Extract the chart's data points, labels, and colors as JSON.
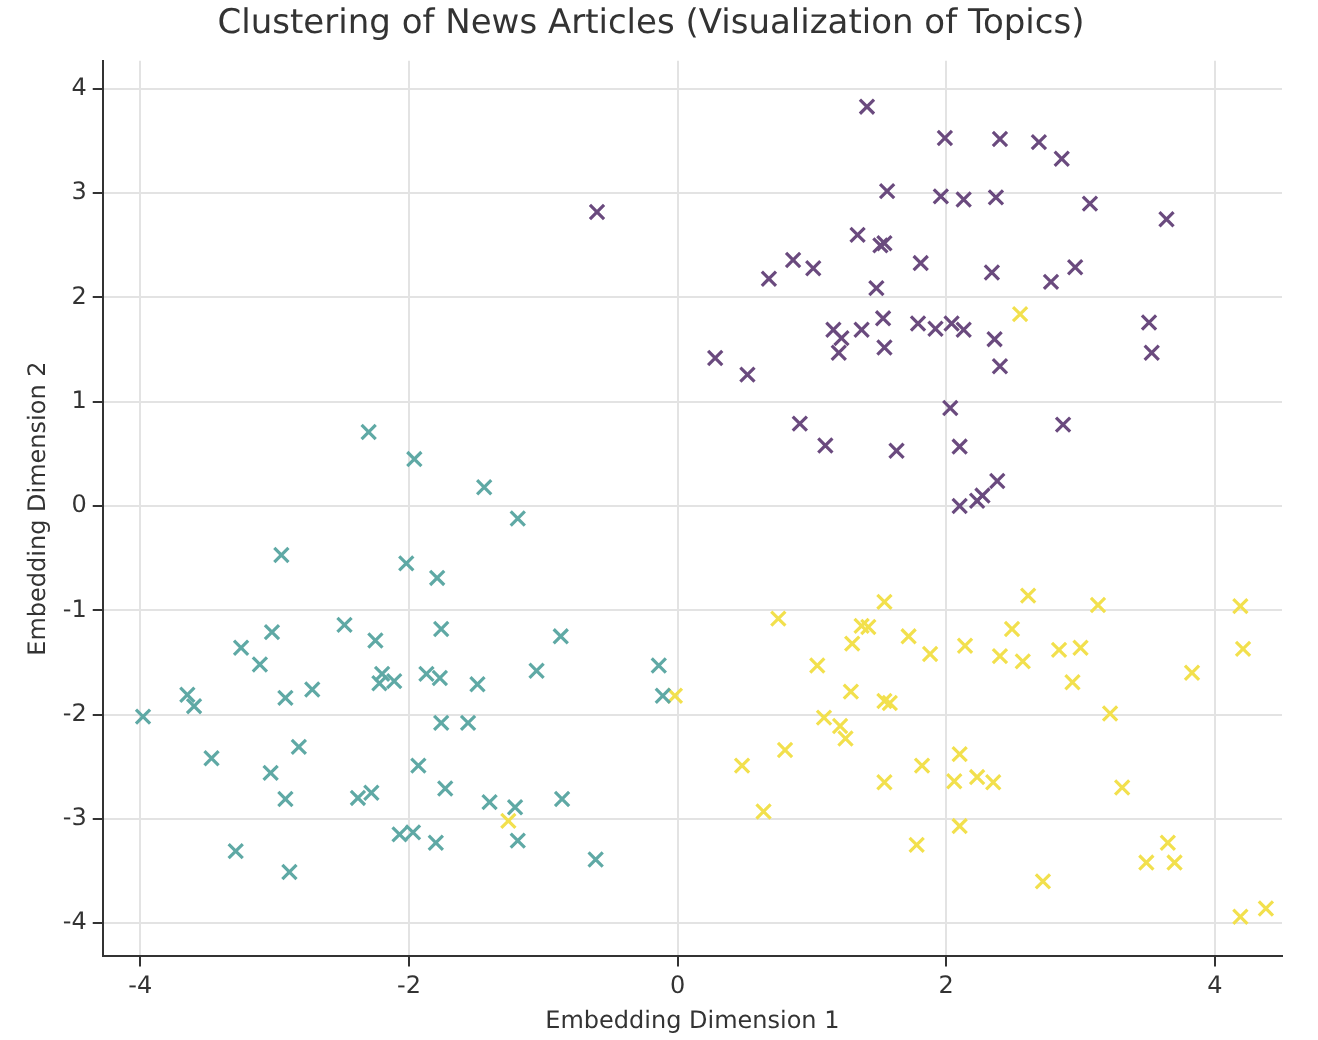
{
  "chart_data": {
    "type": "scatter",
    "title": "Clustering of News Articles (Visualization of Topics)",
    "xlabel": "Embedding Dimension 1",
    "ylabel": "Embedding Dimension 2",
    "xlim": [
      -4.28,
      4.5
    ],
    "ylim": [
      -4.32,
      4.27
    ],
    "xticks": [
      -4,
      -2,
      0,
      2,
      4
    ],
    "yticks": [
      -4,
      -3,
      -2,
      -1,
      0,
      1,
      2,
      3,
      4
    ],
    "grid": true,
    "legend": false,
    "marker": "cross",
    "series": [
      {
        "color": "#6a4a7e",
        "x": [
          1.41,
          1.99,
          2.4,
          2.69,
          2.86,
          1.56,
          1.96,
          2.13,
          2.37,
          3.07,
          3.64,
          1.34,
          1.51,
          1.54,
          0.86,
          1.01,
          0.68,
          1.81,
          2.34,
          2.96,
          2.78,
          1.48,
          1.16,
          1.22,
          1.37,
          1.53,
          1.54,
          1.2,
          1.79,
          1.92,
          2.04,
          2.13,
          2.36,
          2.4,
          3.51,
          3.53,
          0.28,
          0.52,
          2.03,
          2.87,
          0.91,
          1.1,
          1.63,
          2.1,
          2.38,
          2.1,
          2.23,
          2.27,
          -0.6
        ],
        "values": [
          3.83,
          3.53,
          3.52,
          3.49,
          3.33,
          3.02,
          2.97,
          2.94,
          2.96,
          2.9,
          2.75,
          2.6,
          2.5,
          2.52,
          2.36,
          2.28,
          2.18,
          2.33,
          2.24,
          2.29,
          2.15,
          2.09,
          1.69,
          1.61,
          1.69,
          1.8,
          1.52,
          1.47,
          1.75,
          1.7,
          1.75,
          1.69,
          1.6,
          1.34,
          1.76,
          1.47,
          1.42,
          1.26,
          0.94,
          0.78,
          0.79,
          0.58,
          0.53,
          0.57,
          0.24,
          0.0,
          0.05,
          0.1,
          2.82
        ]
      },
      {
        "color": "#5fa9a5",
        "x": [
          -2.3,
          -1.96,
          -1.44,
          -1.19,
          -2.95,
          -2.02,
          -1.79,
          -3.25,
          -3.02,
          -2.48,
          -2.25,
          -1.76,
          -0.87,
          -3.11,
          -3.65,
          -3.6,
          -3.98,
          -2.92,
          -2.72,
          -2.2,
          -2.22,
          -2.11,
          -1.87,
          -1.77,
          -1.49,
          -1.05,
          -0.14,
          -0.11,
          -1.76,
          -1.56,
          -3.47,
          -2.82,
          -3.03,
          -1.93,
          -2.92,
          -2.38,
          -2.28,
          -1.73,
          -1.4,
          -1.21,
          -0.86,
          -1.19,
          -2.07,
          -1.97,
          -1.8,
          -3.29,
          -2.89,
          -0.61
        ],
        "values": [
          0.71,
          0.45,
          0.18,
          -0.12,
          -0.47,
          -0.55,
          -0.69,
          -1.36,
          -1.21,
          -1.14,
          -1.29,
          -1.18,
          -1.25,
          -1.52,
          -1.81,
          -1.92,
          -2.02,
          -1.84,
          -1.76,
          -1.61,
          -1.7,
          -1.68,
          -1.61,
          -1.65,
          -1.71,
          -1.58,
          -1.53,
          -1.82,
          -2.08,
          -2.08,
          -2.42,
          -2.31,
          -2.56,
          -2.49,
          -2.81,
          -2.8,
          -2.75,
          -2.71,
          -2.84,
          -2.89,
          -2.81,
          -3.21,
          -3.15,
          -3.13,
          -3.23,
          -3.31,
          -3.51,
          -3.39
        ]
      },
      {
        "color": "#f2e04d",
        "x": [
          0.75,
          1.54,
          2.61,
          3.13,
          4.19,
          1.37,
          1.42,
          1.3,
          1.72,
          1.88,
          2.14,
          2.49,
          2.4,
          2.57,
          2.84,
          3.0,
          4.21,
          1.04,
          3.83,
          2.94,
          1.29,
          1.54,
          1.58,
          3.22,
          1.09,
          1.21,
          1.25,
          0.48,
          0.8,
          1.54,
          1.82,
          2.1,
          2.06,
          2.23,
          2.35,
          3.31,
          0.64,
          2.1,
          1.78,
          3.49,
          3.65,
          3.7,
          2.72,
          4.19,
          4.38,
          2.55,
          -0.02,
          -1.26
        ],
        "values": [
          -1.08,
          -0.92,
          -0.86,
          -0.95,
          -0.96,
          -1.15,
          -1.16,
          -1.32,
          -1.25,
          -1.42,
          -1.34,
          -1.18,
          -1.44,
          -1.49,
          -1.38,
          -1.36,
          -1.37,
          -1.53,
          -1.6,
          -1.69,
          -1.78,
          -1.87,
          -1.89,
          -1.99,
          -2.03,
          -2.11,
          -2.23,
          -2.49,
          -2.34,
          -2.65,
          -2.49,
          -2.38,
          -2.64,
          -2.6,
          -2.65,
          -2.7,
          -2.93,
          -3.07,
          -3.25,
          -3.42,
          -3.23,
          -3.42,
          -3.6,
          -3.94,
          -3.86,
          1.84,
          -1.82,
          -3.02
        ]
      }
    ]
  }
}
